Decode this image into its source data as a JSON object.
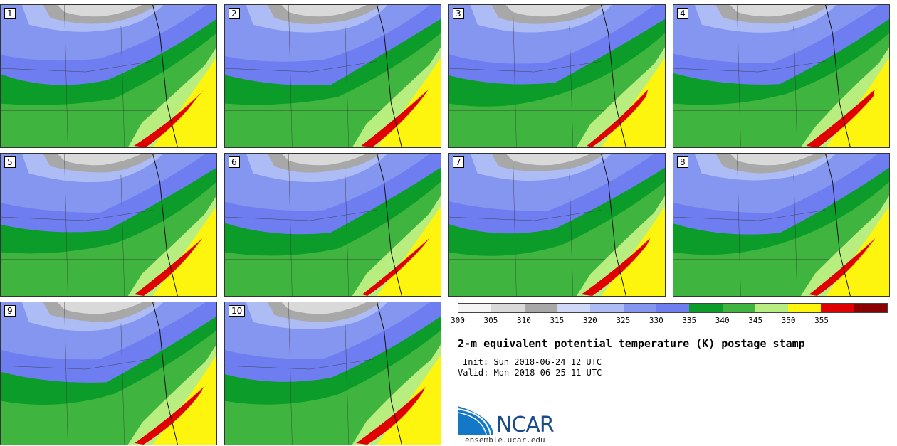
{
  "stamps": [
    "1",
    "2",
    "3",
    "4",
    "5",
    "6",
    "7",
    "8",
    "9",
    "10"
  ],
  "colorbar": {
    "colors": [
      "#f5f5f5",
      "#d9d9d9",
      "#a8a8a8",
      "#cfd8f7",
      "#aebcf5",
      "#8596f0",
      "#6e7ef0",
      "#0b9c2a",
      "#3fb53f",
      "#b7ee7f",
      "#fef50e",
      "#e00000",
      "#8b0000"
    ],
    "ticks": [
      "300",
      "305",
      "310",
      "315",
      "320",
      "325",
      "330",
      "335",
      "340",
      "345",
      "350",
      "355"
    ]
  },
  "title": "2-m equivalent potential temperature (K) postage stamp",
  "init": "Init: Sun 2018-06-24 12 UTC",
  "valid": "Valid: Mon 2018-06-25 11 UTC",
  "logo": {
    "text": "NCAR",
    "site": "ensemble.ucar.edu",
    "color": "#1a4b8c",
    "accent": "#1478c8"
  }
}
